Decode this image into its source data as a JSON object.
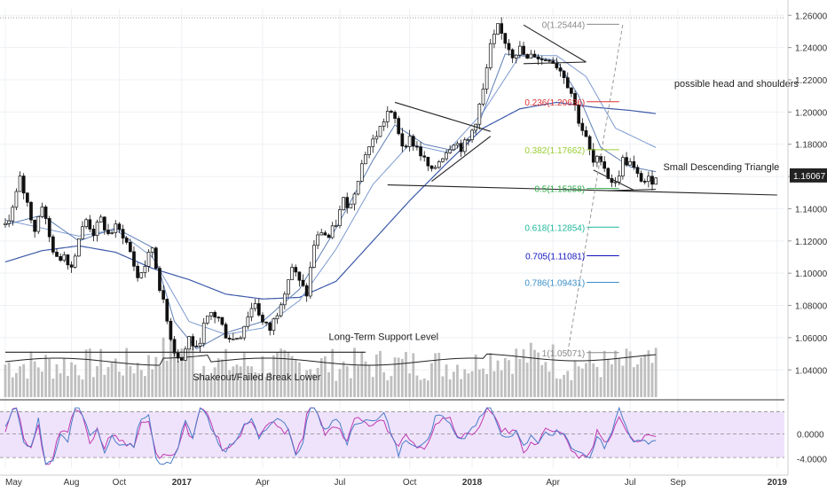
{
  "chart_data": {
    "type": "candlestick",
    "instrument_last_price": "1.16067",
    "price_axis": {
      "ylim": [
        1.022,
        1.264
      ],
      "ticks": [
        "1.26000",
        "1.24000",
        "1.22000",
        "1.20000",
        "1.18000",
        "1.16000",
        "1.14000",
        "1.12000",
        "1.10000",
        "1.08000",
        "1.06000",
        "1.04000"
      ],
      "tick_values": [
        1.26,
        1.24,
        1.22,
        1.2,
        1.18,
        1.16,
        1.14,
        1.12,
        1.1,
        1.08,
        1.06,
        1.04
      ]
    },
    "rsi_axis": {
      "ylim": [
        -5.5,
        4.5
      ],
      "ticks": [
        "0.0000",
        "-4.0000"
      ],
      "tick_values": [
        0,
        -4
      ],
      "band": [
        -3.8,
        3.6
      ]
    },
    "time_axis": {
      "labels": [
        "May",
        "Aug",
        "Oct",
        "2017",
        "Apr",
        "Jul",
        "Oct",
        "2018",
        "Apr",
        "Jul",
        "Sep",
        "2019"
      ],
      "label_bold": [
        false,
        false,
        false,
        true,
        false,
        false,
        false,
        true,
        false,
        false,
        false,
        true
      ],
      "label_index": [
        0,
        18,
        31,
        48,
        70,
        91,
        110,
        127,
        149,
        170,
        183,
        210
      ]
    },
    "price_path": [
      [
        0,
        1.13
      ],
      [
        2,
        1.14
      ],
      [
        4,
        1.158
      ],
      [
        6,
        1.143
      ],
      [
        8,
        1.127
      ],
      [
        10,
        1.143
      ],
      [
        12,
        1.122
      ],
      [
        14,
        1.108
      ],
      [
        16,
        1.112
      ],
      [
        18,
        1.104
      ],
      [
        20,
        1.122
      ],
      [
        22,
        1.133
      ],
      [
        24,
        1.125
      ],
      [
        26,
        1.133
      ],
      [
        28,
        1.124
      ],
      [
        30,
        1.128
      ],
      [
        32,
        1.124
      ],
      [
        34,
        1.113
      ],
      [
        36,
        1.097
      ],
      [
        38,
        1.105
      ],
      [
        40,
        1.116
      ],
      [
        42,
        1.092
      ],
      [
        44,
        1.07
      ],
      [
        46,
        1.052
      ],
      [
        48,
        1.046
      ],
      [
        50,
        1.06
      ],
      [
        52,
        1.052
      ],
      [
        54,
        1.067
      ],
      [
        56,
        1.075
      ],
      [
        58,
        1.072
      ],
      [
        60,
        1.062
      ],
      [
        62,
        1.059
      ],
      [
        64,
        1.062
      ],
      [
        66,
        1.074
      ],
      [
        68,
        1.082
      ],
      [
        70,
        1.069
      ],
      [
        72,
        1.065
      ],
      [
        74,
        1.076
      ],
      [
        76,
        1.09
      ],
      [
        78,
        1.104
      ],
      [
        80,
        1.094
      ],
      [
        82,
        1.087
      ],
      [
        84,
        1.118
      ],
      [
        86,
        1.126
      ],
      [
        88,
        1.122
      ],
      [
        90,
        1.131
      ],
      [
        92,
        1.145
      ],
      [
        94,
        1.142
      ],
      [
        96,
        1.16
      ],
      [
        98,
        1.175
      ],
      [
        100,
        1.182
      ],
      [
        102,
        1.19
      ],
      [
        104,
        1.2
      ],
      [
        106,
        1.195
      ],
      [
        108,
        1.18
      ],
      [
        110,
        1.183
      ],
      [
        112,
        1.178
      ],
      [
        114,
        1.17
      ],
      [
        116,
        1.162
      ],
      [
        118,
        1.17
      ],
      [
        120,
        1.176
      ],
      [
        122,
        1.182
      ],
      [
        124,
        1.178
      ],
      [
        126,
        1.182
      ],
      [
        128,
        1.195
      ],
      [
        130,
        1.213
      ],
      [
        132,
        1.24
      ],
      [
        134,
        1.252
      ],
      [
        136,
        1.244
      ],
      [
        138,
        1.236
      ],
      [
        140,
        1.239
      ],
      [
        142,
        1.232
      ],
      [
        144,
        1.236
      ],
      [
        146,
        1.232
      ],
      [
        148,
        1.234
      ],
      [
        150,
        1.229
      ],
      [
        152,
        1.223
      ],
      [
        154,
        1.212
      ],
      [
        156,
        1.195
      ],
      [
        158,
        1.183
      ],
      [
        160,
        1.168
      ],
      [
        162,
        1.172
      ],
      [
        164,
        1.16
      ],
      [
        166,
        1.155
      ],
      [
        168,
        1.17
      ],
      [
        170,
        1.168
      ],
      [
        172,
        1.16
      ],
      [
        174,
        1.157
      ],
      [
        176,
        1.158
      ],
      [
        177,
        1.161
      ]
    ],
    "ma_short": [
      [
        0,
        1.13
      ],
      [
        10,
        1.136
      ],
      [
        20,
        1.12
      ],
      [
        30,
        1.128
      ],
      [
        40,
        1.116
      ],
      [
        46,
        1.07
      ],
      [
        52,
        1.053
      ],
      [
        60,
        1.063
      ],
      [
        70,
        1.07
      ],
      [
        80,
        1.09
      ],
      [
        90,
        1.128
      ],
      [
        100,
        1.17
      ],
      [
        106,
        1.192
      ],
      [
        114,
        1.18
      ],
      [
        122,
        1.176
      ],
      [
        128,
        1.188
      ],
      [
        136,
        1.236
      ],
      [
        144,
        1.234
      ],
      [
        150,
        1.232
      ],
      [
        156,
        1.21
      ],
      [
        162,
        1.178
      ],
      [
        170,
        1.166
      ],
      [
        177,
        1.163
      ]
    ],
    "ma_long": [
      [
        0,
        1.107
      ],
      [
        10,
        1.114
      ],
      [
        20,
        1.117
      ],
      [
        30,
        1.113
      ],
      [
        40,
        1.103
      ],
      [
        50,
        1.096
      ],
      [
        60,
        1.087
      ],
      [
        70,
        1.084
      ],
      [
        80,
        1.085
      ],
      [
        90,
        1.095
      ],
      [
        100,
        1.12
      ],
      [
        110,
        1.145
      ],
      [
        120,
        1.168
      ],
      [
        130,
        1.19
      ],
      [
        140,
        1.202
      ],
      [
        150,
        1.206
      ],
      [
        160,
        1.203
      ],
      [
        170,
        1.201
      ],
      [
        177,
        1.199
      ]
    ],
    "ma_medium": [
      [
        0,
        1.133
      ],
      [
        10,
        1.128
      ],
      [
        20,
        1.123
      ],
      [
        30,
        1.127
      ],
      [
        40,
        1.11
      ],
      [
        50,
        1.07
      ],
      [
        60,
        1.062
      ],
      [
        70,
        1.066
      ],
      [
        80,
        1.083
      ],
      [
        90,
        1.115
      ],
      [
        100,
        1.155
      ],
      [
        110,
        1.18
      ],
      [
        120,
        1.175
      ],
      [
        130,
        1.2
      ],
      [
        140,
        1.235
      ],
      [
        150,
        1.235
      ],
      [
        158,
        1.222
      ],
      [
        166,
        1.19
      ],
      [
        177,
        1.178
      ]
    ],
    "fibonacci": [
      {
        "label": "0(1.25444)",
        "value": 1.25444,
        "color": "#888888"
      },
      {
        "label": "0.236(1.20636)",
        "value": 1.20636,
        "color": "#e03030"
      },
      {
        "label": "0.382(1.17662)",
        "value": 1.17662,
        "color": "#9acd32"
      },
      {
        "label": "0.5(1.15258)",
        "value": 1.15258,
        "color": "#2eaa4a"
      },
      {
        "label": "0.618(1.12854)",
        "value": 1.12854,
        "color": "#1fb89a"
      },
      {
        "label": "0.705(1.11081)",
        "value": 1.11081,
        "color": "#1010c0"
      },
      {
        "label": "0.786(1.09431)",
        "value": 1.09431,
        "color": "#3a8fc8"
      },
      {
        "label": "1(1.05071)",
        "value": 1.05071,
        "color": "#888888"
      }
    ],
    "annotations": [
      {
        "text": "possible head and shoulders",
        "x": 182,
        "y": 1.2155
      },
      {
        "text": "Small Descending Triangle",
        "x": 179,
        "y": 1.164
      },
      {
        "text": "Long-Term Support Level",
        "x": 88,
        "y": 1.0585
      },
      {
        "text": "Shakeout/Failed Break Lower",
        "x": 51,
        "y": 1.0335
      }
    ],
    "trendlines": [
      {
        "from": [
          0,
          1.051
        ],
        "to": [
          98,
          1.051
        ],
        "color": "#222222"
      },
      {
        "from": [
          104,
          1.1548
        ],
        "to": [
          210,
          1.1485
        ],
        "color": "#222222"
      },
      {
        "from": [
          106,
          1.206
        ],
        "to": [
          132,
          1.188
        ],
        "color": "#222222"
      },
      {
        "from": [
          116,
          1.157
        ],
        "to": [
          132,
          1.185
        ],
        "color": "#222222"
      },
      {
        "from": [
          141,
          1.254
        ],
        "to": [
          158,
          1.231
        ],
        "color": "#222222"
      },
      {
        "from": [
          141,
          1.23
        ],
        "to": [
          158,
          1.231
        ],
        "color": "#222222"
      },
      {
        "from": [
          160,
          1.164
        ],
        "to": [
          171,
          1.1515
        ],
        "color": "#222222"
      },
      {
        "from": [
          164,
          1.1512
        ],
        "to": [
          177,
          1.152
        ],
        "color": "#222222"
      }
    ],
    "colors": {
      "candle": "#111111",
      "ma_short": "#5f7fb5",
      "ma_long": "#3d5aa8",
      "ma_medium": "#7d9bd0",
      "volume": "#bfbfbf",
      "rsi_a": "#4a7cc9",
      "rsi_b": "#c03ab0",
      "rsi_band": "#efe3fb",
      "last_price_box": "#222222"
    }
  }
}
